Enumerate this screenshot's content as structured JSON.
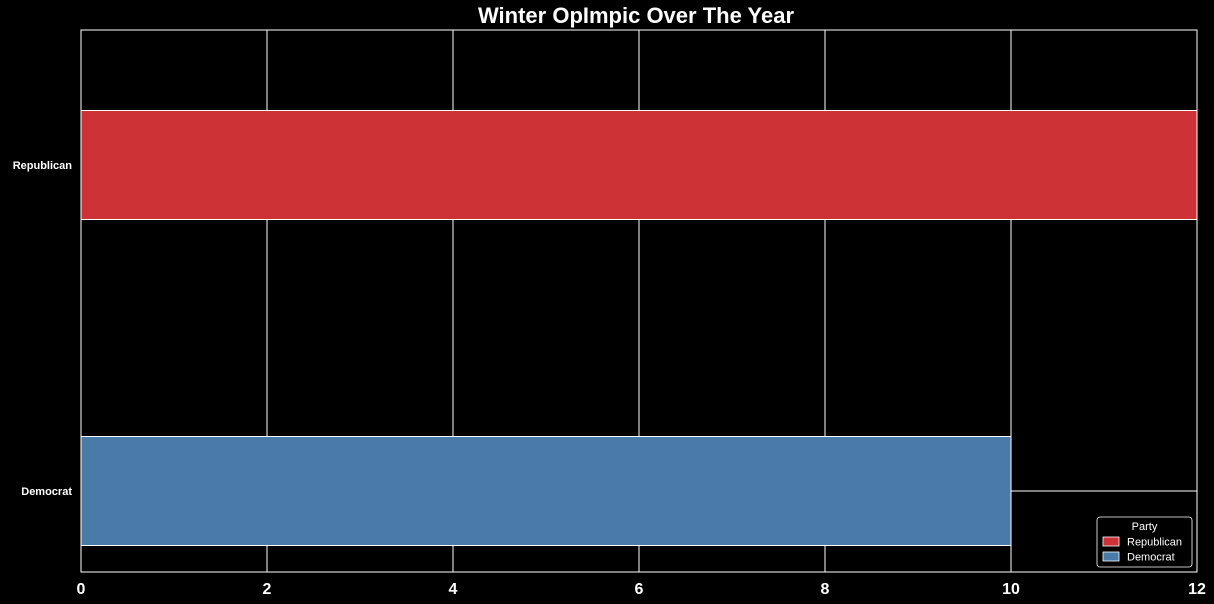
{
  "chart_data": {
    "type": "bar",
    "orientation": "horizontal",
    "title": "Winter OpImpic Over The Year",
    "xlabel": "",
    "ylabel": "",
    "categories": [
      "Republican",
      "Democrat"
    ],
    "values": [
      12,
      10
    ],
    "colors": [
      "#cd3236",
      "#4a7ba8"
    ],
    "xlim": [
      0,
      12
    ],
    "x_ticks": [
      0,
      2,
      4,
      6,
      8,
      10,
      12
    ],
    "grid": true,
    "background": "#000000",
    "grid_color": "#ffffff",
    "legend": {
      "title": "Party",
      "placement": "bottom-right",
      "entries": [
        {
          "label": "Republican",
          "color": "#cd3236"
        },
        {
          "label": "Democrat",
          "color": "#4a7ba8"
        }
      ]
    }
  }
}
